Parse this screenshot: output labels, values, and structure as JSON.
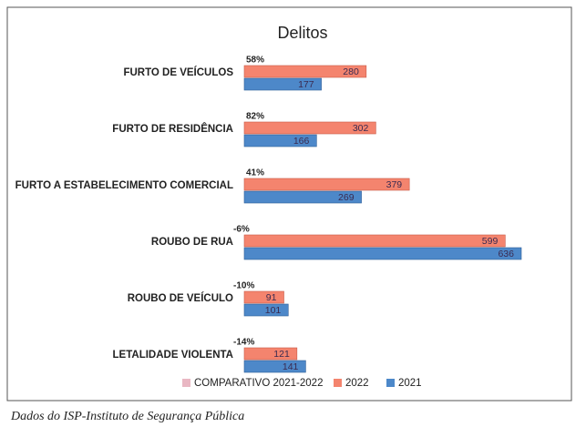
{
  "chart_data": {
    "type": "bar",
    "orientation": "horizontal",
    "title": "Delitos",
    "categories": [
      "FURTO DE VEÍCULOS",
      "FURTO DE RESIDÊNCIA",
      "FURTO A ESTABELECIMENTO COMERCIAL",
      "ROUBO DE RUA",
      "ROUBO DE VEÍCULO",
      "LETALIDADE VIOLENTA"
    ],
    "series": [
      {
        "name": "COMPARATIVO 2021-2022",
        "color": "#e9b7c3",
        "values": [
          58,
          82,
          41,
          -6,
          -10,
          -14
        ],
        "value_labels": [
          "58%",
          "82%",
          "41%",
          "-6%",
          "-10%",
          "-14%"
        ]
      },
      {
        "name": "2022",
        "color": "#f4846e",
        "values": [
          280,
          302,
          379,
          599,
          91,
          121
        ]
      },
      {
        "name": "2021",
        "color": "#4d88c9",
        "values": [
          177,
          166,
          269,
          636,
          101,
          141
        ]
      }
    ],
    "legend": "bottom",
    "source": "Dados do ISP-Instituto de Segurança Pública"
  }
}
